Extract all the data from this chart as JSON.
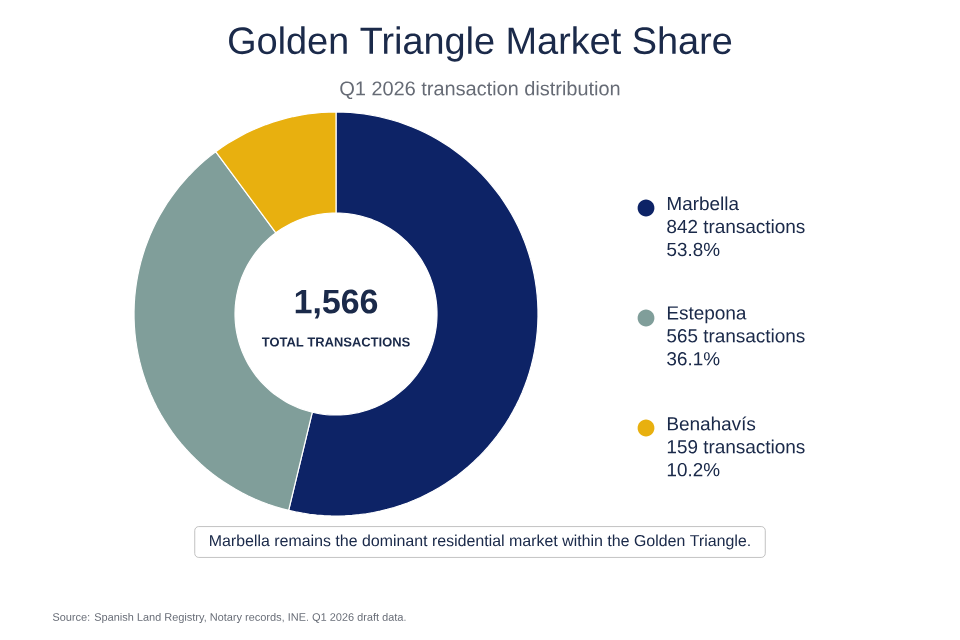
{
  "chart_data": {
    "type": "donut",
    "title": "Golden Triangle Market Share",
    "subtitle": "Q1 2026 transaction distribution",
    "categories": [
      "Marbella",
      "Estepona",
      "Benahavís"
    ],
    "values": [
      842,
      565,
      159
    ],
    "colors": [
      "#0d2366",
      "#809e9a",
      "#e8b00f"
    ],
    "value_labels": [
      "842 transactions",
      "565 transactions",
      "159 transactions"
    ],
    "annotations": [
      "1,566",
      "TOTAL TRANSACTIONS",
      "53.8%",
      "36.1%",
      "10.2%",
      "Marbella remains the dominant residential market within the Golden Triangle.",
      "Source: Spanish Land Registry, Notary records, INE. Q1 2026 draft data."
    ],
    "legend": "right"
  }
}
